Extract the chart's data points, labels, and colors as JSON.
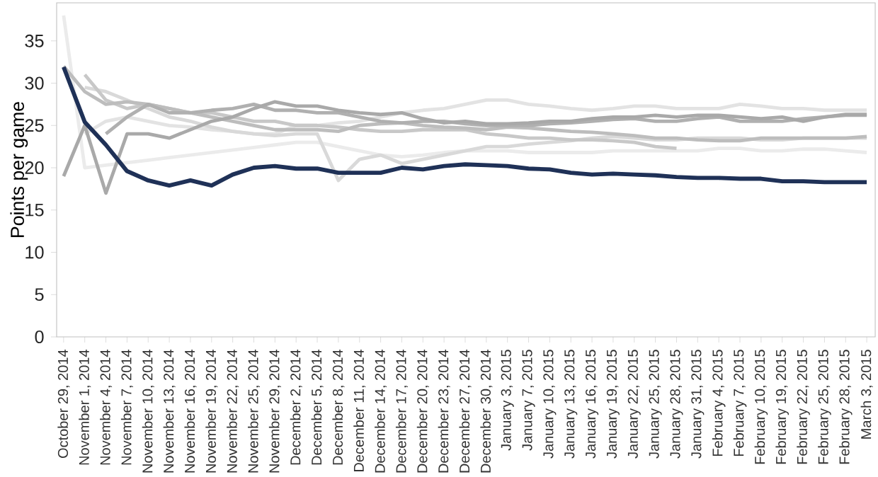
{
  "chart_data": {
    "type": "line",
    "ylabel": "Points per game",
    "categories": [
      "October 29, 2014",
      "November 1, 2014",
      "November 4, 2014",
      "November 7, 2014",
      "November 10, 2014",
      "November 13, 2014",
      "November 16, 2014",
      "November 19, 2014",
      "November 22, 2014",
      "November 25, 2014",
      "November 29, 2014",
      "December 2, 2014",
      "December 5, 2014",
      "December 8, 2014",
      "December 11, 2014",
      "December 14, 2014",
      "December 17, 2014",
      "December 20, 2014",
      "December 23, 2014",
      "December 27, 2014",
      "December 30, 2014",
      "January 3, 2015",
      "January 7, 2015",
      "January 10, 2015",
      "January 13, 2015",
      "January 16, 2015",
      "January 19, 2015",
      "January 22, 2015",
      "January 25, 2015",
      "January 28, 2015",
      "January 31, 2015",
      "February 4, 2015",
      "February 7, 2015",
      "February 10, 2015",
      "February 19, 2015",
      "February 22, 2015",
      "February 25, 2015",
      "February 28, 2015",
      "March 3, 2015"
    ],
    "ylim": [
      0,
      39.5
    ],
    "yticks": [
      0,
      5,
      10,
      15,
      20,
      25,
      30,
      35
    ],
    "series": [
      {
        "color": "#ebebeb",
        "values": [
          38,
          20,
          20.3,
          20.6,
          20.9,
          21.2,
          21.5,
          21.8,
          22.1,
          22.4,
          22.7,
          23,
          23,
          22.5,
          22,
          21.5,
          21.3,
          21.5,
          21.8,
          22,
          22,
          22,
          21.8,
          21.8,
          21.8,
          21.8,
          22,
          22,
          22,
          22,
          22,
          22.3,
          22.3,
          22,
          22,
          22.2,
          22.2,
          22,
          21.8
        ]
      },
      {
        "color": "#e3e3e3",
        "values": [
          null,
          24,
          25.5,
          26,
          25.5,
          25,
          24.8,
          24.5,
          24.3,
          24,
          24,
          25,
          25,
          25.3,
          25.5,
          26,
          26.5,
          26.8,
          27,
          27.5,
          28,
          28,
          27.5,
          27.3,
          27,
          26.8,
          27,
          27.3,
          27.3,
          27,
          27,
          27,
          27.5,
          27.3,
          27,
          27,
          26.8,
          26.8,
          26.8
        ]
      },
      {
        "color": "#d9d9d9",
        "values": [
          null,
          29.5,
          29,
          28,
          27,
          26,
          25.5,
          24.8,
          24.3,
          24,
          23.8,
          24,
          24,
          18.5,
          21,
          21.5,
          20.5,
          21,
          21.5,
          22,
          22.5,
          22.5,
          22.8,
          23,
          23.2,
          23.5,
          23.7,
          23.5,
          23.3,
          23.3,
          23.5,
          23.5,
          23.5,
          23.3,
          23.3,
          23.5,
          23.5,
          23.5,
          23.5
        ]
      },
      {
        "color": "#c8c8c8",
        "values": [
          null,
          31,
          28,
          27,
          27.5,
          27,
          26.5,
          26.5,
          26,
          25.5,
          25.5,
          25,
          25,
          24.8,
          24.5,
          24.3,
          24.3,
          24.5,
          24.5,
          24.5,
          24,
          23.8,
          23.5,
          23.5,
          23.3,
          23.3,
          23.2,
          23,
          22.5,
          22.3,
          null,
          null,
          null,
          null,
          null,
          null,
          null,
          null,
          null
        ]
      },
      {
        "color": "#bdbdbd",
        "values": [
          32,
          29,
          27.5,
          27.8,
          27.5,
          27,
          26.5,
          26,
          25.5,
          25,
          24.5,
          24.5,
          24.5,
          24.3,
          25,
          25.2,
          25.3,
          25,
          24.8,
          24.7,
          24.5,
          24.8,
          24.7,
          24.5,
          24.3,
          24.2,
          24,
          23.8,
          23.5,
          23.5,
          23.3,
          23.2,
          23.2,
          23.5,
          23.5,
          23.5,
          23.5,
          23.5,
          23.7
        ]
      },
      {
        "color": "#b0b0b0",
        "values": [
          null,
          null,
          24,
          26,
          27.5,
          26.5,
          26.5,
          26.8,
          27,
          27.5,
          26.8,
          26.8,
          26.5,
          26.5,
          26,
          25.5,
          25.3,
          25.5,
          25.5,
          25.2,
          25,
          25,
          25,
          25.2,
          25.3,
          25.5,
          25.7,
          25.8,
          25.5,
          25.5,
          25.8,
          26,
          25.5,
          25.5,
          25.5,
          25.8,
          26,
          26.2,
          26.2
        ]
      },
      {
        "color": "#a9a9a9",
        "values": [
          19,
          25,
          17,
          24,
          24,
          23.5,
          24.5,
          25.5,
          26,
          27,
          27.8,
          27.3,
          27.3,
          26.8,
          26.5,
          26.3,
          26.5,
          25.8,
          25.3,
          25.5,
          25.2,
          25.2,
          25.3,
          25.5,
          25.5,
          25.8,
          26,
          26,
          26.2,
          26,
          26.2,
          26.2,
          26,
          25.8,
          26,
          25.5,
          26,
          26.3,
          26.3
        ]
      },
      {
        "color": "#1f3157",
        "values": [
          31.9,
          25.4,
          22.7,
          19.6,
          18.5,
          17.9,
          18.5,
          17.9,
          19.2,
          20.0,
          20.2,
          19.9,
          19.9,
          19.4,
          19.4,
          19.4,
          20.0,
          19.8,
          20.2,
          20.4,
          20.3,
          20.2,
          19.9,
          19.8,
          19.4,
          19.2,
          19.3,
          19.2,
          19.1,
          18.9,
          18.8,
          18.8,
          18.7,
          18.7,
          18.4,
          18.4,
          18.3,
          18.3,
          18.3
        ]
      }
    ]
  }
}
